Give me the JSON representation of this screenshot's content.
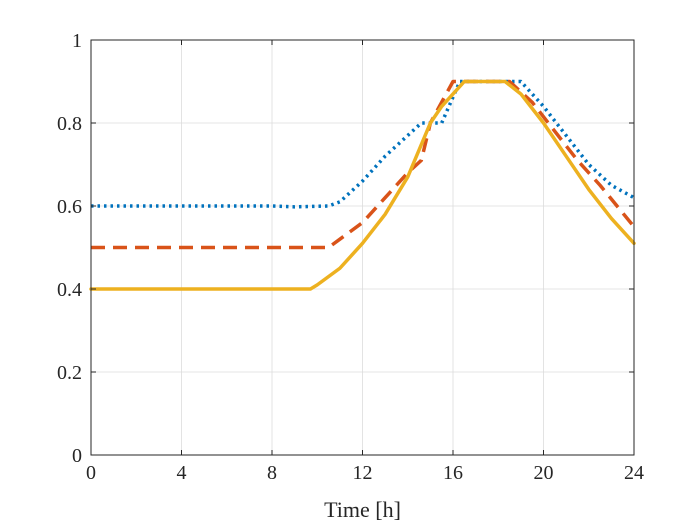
{
  "chart_data": {
    "type": "line",
    "title": "",
    "xlabel": "Time [h]",
    "ylabel": "",
    "xlim": [
      0,
      24
    ],
    "ylim": [
      0,
      1
    ],
    "xticks": [
      0,
      4,
      8,
      12,
      16,
      20,
      24
    ],
    "yticks": [
      0,
      0.2,
      0.4,
      0.6,
      0.8,
      1
    ],
    "xtick_labels": [
      "0",
      "4",
      "8",
      "12",
      "16",
      "20",
      "24"
    ],
    "ytick_labels": [
      "0",
      "0.2",
      "0.4",
      "0.6",
      "0.8",
      "1"
    ],
    "grid": true,
    "series": [
      {
        "name": "series-1",
        "color": "#0072bd",
        "style": "dotted",
        "points": [
          [
            0,
            0.6
          ],
          [
            4,
            0.6
          ],
          [
            8,
            0.6
          ],
          [
            9,
            0.598
          ],
          [
            10.5,
            0.6
          ],
          [
            11,
            0.61
          ],
          [
            12,
            0.66
          ],
          [
            13,
            0.72
          ],
          [
            14,
            0.77
          ],
          [
            14.6,
            0.8
          ],
          [
            15.5,
            0.8
          ],
          [
            16.3,
            0.9
          ],
          [
            19,
            0.9
          ],
          [
            20,
            0.84
          ],
          [
            21,
            0.77
          ],
          [
            22,
            0.7
          ],
          [
            23,
            0.65
          ],
          [
            24,
            0.62
          ]
        ]
      },
      {
        "name": "series-2",
        "color": "#d95319",
        "style": "dashed",
        "points": [
          [
            0,
            0.5
          ],
          [
            4,
            0.5
          ],
          [
            8,
            0.5
          ],
          [
            10.5,
            0.5
          ],
          [
            11,
            0.52
          ],
          [
            12,
            0.56
          ],
          [
            13,
            0.62
          ],
          [
            14,
            0.68
          ],
          [
            14.6,
            0.71
          ],
          [
            15,
            0.8
          ],
          [
            16,
            0.9
          ],
          [
            18.5,
            0.9
          ],
          [
            19.5,
            0.85
          ],
          [
            20.5,
            0.78
          ],
          [
            21.5,
            0.71
          ],
          [
            22.5,
            0.65
          ],
          [
            24,
            0.55
          ]
        ]
      },
      {
        "name": "series-3",
        "color": "#edb120",
        "style": "solid",
        "points": [
          [
            0,
            0.4
          ],
          [
            4,
            0.4
          ],
          [
            8,
            0.4
          ],
          [
            9.7,
            0.4
          ],
          [
            10,
            0.41
          ],
          [
            11,
            0.45
          ],
          [
            12,
            0.51
          ],
          [
            13,
            0.58
          ],
          [
            14,
            0.67
          ],
          [
            15,
            0.8
          ],
          [
            15.5,
            0.84
          ],
          [
            16.5,
            0.9
          ],
          [
            18.3,
            0.9
          ],
          [
            19,
            0.87
          ],
          [
            20,
            0.8
          ],
          [
            21,
            0.72
          ],
          [
            22,
            0.64
          ],
          [
            23,
            0.57
          ],
          [
            24,
            0.51
          ]
        ]
      }
    ]
  }
}
